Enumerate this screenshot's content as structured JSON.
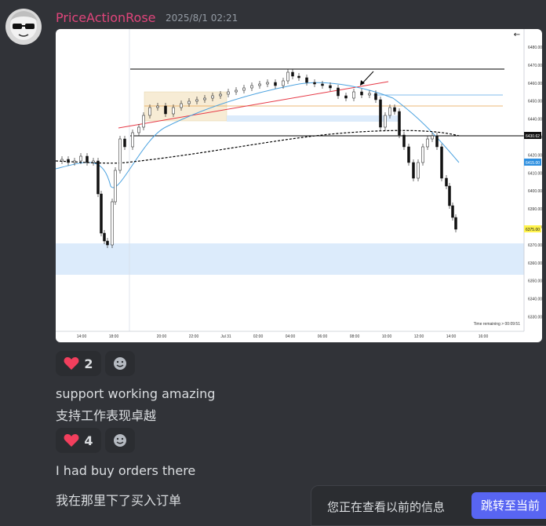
{
  "message": {
    "username": "PriceActionRose",
    "timestamp": "2025/8/1 02:21"
  },
  "chart_data": {
    "type": "candlestick",
    "x_ticks": [
      "14:00",
      "18:00",
      "20:00",
      "22:00",
      "Jul 31",
      "02:00",
      "04:00",
      "06:00",
      "08:00",
      "10:00",
      "12:00",
      "14:00",
      "16:00"
    ],
    "y_ticks": [
      "6480.00",
      "6470.00",
      "6460.00",
      "6450.00",
      "6440.00",
      "6430.00",
      "6420.00",
      "6410.00",
      "6400.00",
      "6390.00",
      "6380.00",
      "6370.00",
      "6360.00",
      "6350.00",
      "6340.00",
      "6330.00"
    ],
    "price_tags": [
      "6430.62",
      "6415.00",
      "6375.00"
    ],
    "footer": "Time remaining > 00:09:51"
  },
  "reactions": [
    {
      "emoji": "heart",
      "count": "2"
    },
    {
      "emoji": "heart",
      "count": "4"
    }
  ],
  "messages": [
    "support working amazing",
    "支持工作表现卓越",
    "I had buy orders there",
    "我在那里下了买入订单"
  ],
  "banner": {
    "text": "您正在查看以前的信息",
    "button": "跳转至当前"
  }
}
